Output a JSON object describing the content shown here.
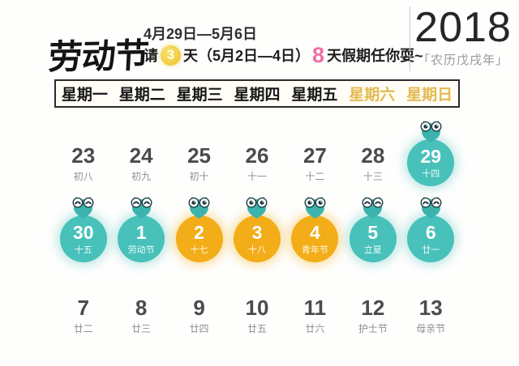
{
  "header": {
    "title": "劳动节",
    "date_range": "4月29日—5月6日",
    "line2": {
      "prefix": "请",
      "badge": "3",
      "middle": "天（5月2日—4日）",
      "big": "8",
      "suffix": "天假期任你耍~"
    },
    "year": "2018",
    "lunar_year": "「农历戊戌年」"
  },
  "week_header": [
    "星期一",
    "星期二",
    "星期三",
    "星期四",
    "星期五",
    "星期六",
    "星期日"
  ],
  "calendar": {
    "rows": [
      [
        {
          "day": "23",
          "sub": "初八",
          "style": "plain"
        },
        {
          "day": "24",
          "sub": "初九",
          "style": "plain"
        },
        {
          "day": "25",
          "sub": "初十",
          "style": "plain"
        },
        {
          "day": "26",
          "sub": "十一",
          "style": "plain"
        },
        {
          "day": "27",
          "sub": "十二",
          "style": "plain"
        },
        {
          "day": "28",
          "sub": "十三",
          "style": "plain"
        },
        {
          "day": "29",
          "sub": "十四",
          "style": "teal",
          "owl": "open"
        }
      ],
      [
        {
          "day": "30",
          "sub": "十五",
          "style": "teal",
          "owl": "closed"
        },
        {
          "day": "1",
          "sub": "劳动节",
          "style": "teal",
          "owl": "closed"
        },
        {
          "day": "2",
          "sub": "十七",
          "style": "orange",
          "owl": "open"
        },
        {
          "day": "3",
          "sub": "十八",
          "style": "orange",
          "owl": "open"
        },
        {
          "day": "4",
          "sub": "青年节",
          "style": "orange",
          "owl": "open"
        },
        {
          "day": "5",
          "sub": "立夏",
          "style": "teal",
          "owl": "closed"
        },
        {
          "day": "6",
          "sub": "廿一",
          "style": "teal",
          "owl": "closed"
        }
      ],
      [
        {
          "day": "7",
          "sub": "廿二",
          "style": "plain"
        },
        {
          "day": "8",
          "sub": "廿三",
          "style": "plain"
        },
        {
          "day": "9",
          "sub": "廿四",
          "style": "plain"
        },
        {
          "day": "10",
          "sub": "廿五",
          "style": "plain"
        },
        {
          "day": "11",
          "sub": "廿六",
          "style": "plain"
        },
        {
          "day": "12",
          "sub": "护士节",
          "style": "plain"
        },
        {
          "day": "13",
          "sub": "母亲节",
          "style": "plain"
        }
      ]
    ]
  },
  "colors": {
    "teal": "#47c1ba",
    "orange": "#f3ad18",
    "weekend_gold": "#e3ba52",
    "highlight_pink": "#ee6fa5",
    "badge_yellow": "#ecc32e",
    "text_dark": "#141414",
    "text_gray": "#4b4b4b",
    "text_light": "#8f8f8f"
  }
}
